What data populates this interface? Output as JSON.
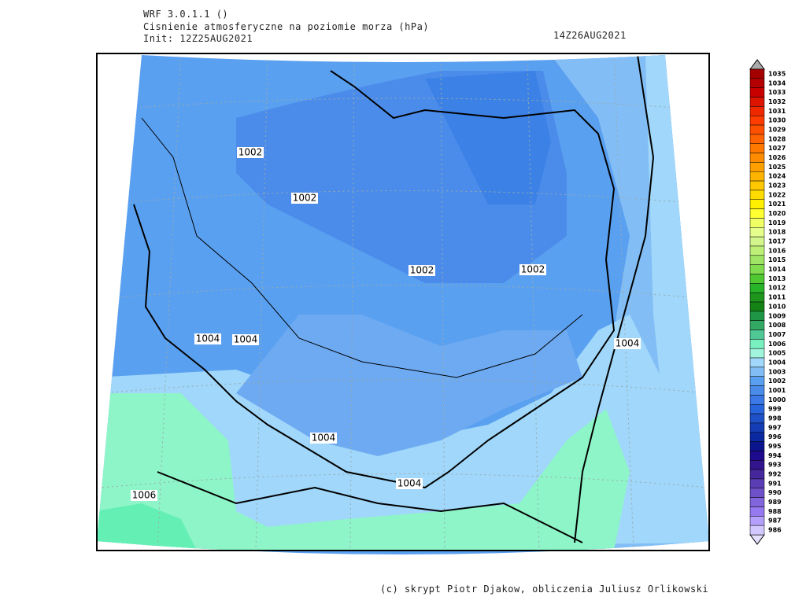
{
  "header": {
    "model": "WRF 3.0.1.1 ()",
    "title": "Cisnienie atmosferyczne na poziomie morza (hPa)",
    "init": "Init: 12Z25AUG2021",
    "valid": "14Z26AUG2021"
  },
  "footer": "(c) skrypt Piotr Djakow, obliczenia Juliusz Orlikowski",
  "contour_labels": [
    "1002",
    "1002",
    "1002",
    "1002",
    "1004",
    "1004",
    "1004",
    "1004",
    "1004",
    "1006"
  ],
  "colorbar": {
    "levels": [
      1035,
      1034,
      1033,
      1032,
      1031,
      1030,
      1029,
      1028,
      1027,
      1026,
      1025,
      1024,
      1023,
      1022,
      1021,
      1020,
      1019,
      1018,
      1017,
      1016,
      1015,
      1014,
      1013,
      1012,
      1011,
      1010,
      1009,
      1008,
      1007,
      1006,
      1005,
      1004,
      1003,
      1002,
      1001,
      1000,
      999,
      998,
      997,
      996,
      995,
      994,
      993,
      992,
      991,
      990,
      989,
      988,
      987,
      986
    ],
    "colors": [
      "#a50000",
      "#b40000",
      "#c80000",
      "#dc1400",
      "#f02800",
      "#ff3c00",
      "#ff5000",
      "#ff6400",
      "#ff7800",
      "#ff8c00",
      "#ffa000",
      "#ffb400",
      "#ffc800",
      "#ffdc00",
      "#fff000",
      "#ffff32",
      "#f0ff64",
      "#e6ff8c",
      "#d2f58c",
      "#bef078",
      "#a0e664",
      "#82dc50",
      "#50c832",
      "#28b428",
      "#1e961e",
      "#148214",
      "#1e9646",
      "#32aa64",
      "#50c896",
      "#78f0c0",
      "#a0f5dc",
      "#a0d7fa",
      "#82bef5",
      "#5aa0f0",
      "#4b8ceb",
      "#3c78e6",
      "#2864dc",
      "#1e50c8",
      "#143cb4",
      "#0a28a0",
      "#0a148c",
      "#1e0a8c",
      "#32148c",
      "#46289c",
      "#5a3cb4",
      "#6e50c8",
      "#8264dc",
      "#9678f0",
      "#b4a0fa",
      "#d2c8ff"
    ]
  }
}
